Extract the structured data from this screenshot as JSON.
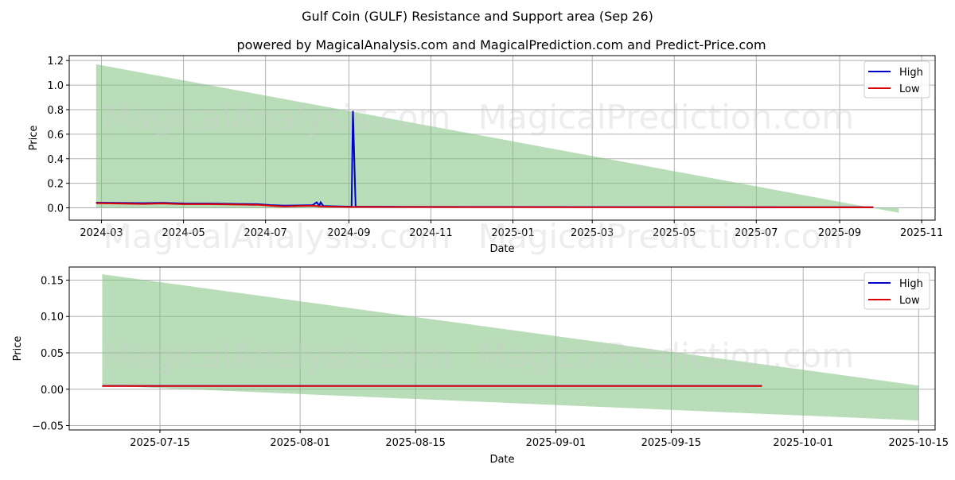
{
  "header": {
    "title": "Gulf Coin (GULF) Resistance and Support area (Sep 26)",
    "subtitle": "powered by MagicalAnalysis.com and MagicalPrediction.com and Predict-Price.com"
  },
  "watermarks": [
    "MagicalAnalysis.com",
    "MagicalPrediction.com"
  ],
  "colors": {
    "high": "#0000cc",
    "low": "#dd0000",
    "band": "#7fbf7f",
    "grid": "#b0b0b0"
  },
  "chart_data": [
    {
      "type": "line",
      "title": "",
      "xlabel": "Date",
      "ylabel": "Price",
      "grid": true,
      "legend_position": "top-right",
      "xlim": [
        "2024-02-06",
        "2025-11-11"
      ],
      "ylim": [
        -0.1,
        1.24
      ],
      "x_ticks": [
        "2024-03-01",
        "2024-05-01",
        "2024-07-01",
        "2024-09-01",
        "2024-11-01",
        "2025-01-01",
        "2025-03-01",
        "2025-05-01",
        "2025-07-01",
        "2025-09-01",
        "2025-11-01"
      ],
      "x_tick_labels": [
        "2024-03",
        "2024-05",
        "2024-07",
        "2024-09",
        "2024-11",
        "2025-01",
        "2025-03",
        "2025-05",
        "2025-07",
        "2025-09",
        "2025-11"
      ],
      "y_ticks": [
        0.0,
        0.2,
        0.4,
        0.6,
        0.8,
        1.0,
        1.2
      ],
      "y_tick_labels": [
        "0.0",
        "0.2",
        "0.4",
        "0.6",
        "0.8",
        "1.0",
        "1.2"
      ],
      "band": {
        "name": "Resistance and Support area",
        "upper": [
          {
            "x": "2024-02-26",
            "y": 1.17
          },
          {
            "x": "2025-10-15",
            "y": -0.04
          }
        ],
        "lower": [
          {
            "x": "2024-02-26",
            "y": 0.0
          },
          {
            "x": "2025-10-15",
            "y": 0.0
          }
        ]
      },
      "series": [
        {
          "name": "High",
          "points": [
            {
              "x": "2024-02-26",
              "y": 0.042
            },
            {
              "x": "2024-03-15",
              "y": 0.04
            },
            {
              "x": "2024-04-01",
              "y": 0.038
            },
            {
              "x": "2024-04-15",
              "y": 0.041
            },
            {
              "x": "2024-05-01",
              "y": 0.036
            },
            {
              "x": "2024-05-20",
              "y": 0.035
            },
            {
              "x": "2024-06-10",
              "y": 0.032
            },
            {
              "x": "2024-06-25",
              "y": 0.03
            },
            {
              "x": "2024-07-05",
              "y": 0.022
            },
            {
              "x": "2024-07-15",
              "y": 0.018
            },
            {
              "x": "2024-07-25",
              "y": 0.02
            },
            {
              "x": "2024-08-05",
              "y": 0.022
            },
            {
              "x": "2024-08-08",
              "y": 0.045
            },
            {
              "x": "2024-08-10",
              "y": 0.018
            },
            {
              "x": "2024-08-11",
              "y": 0.045
            },
            {
              "x": "2024-08-13",
              "y": 0.015
            },
            {
              "x": "2024-08-25",
              "y": 0.012
            },
            {
              "x": "2024-09-01",
              "y": 0.01
            },
            {
              "x": "2024-09-03",
              "y": 0.01
            },
            {
              "x": "2024-09-04",
              "y": 0.79
            },
            {
              "x": "2024-09-06",
              "y": 0.01
            },
            {
              "x": "2024-10-01",
              "y": 0.009
            },
            {
              "x": "2024-12-01",
              "y": 0.008
            },
            {
              "x": "2025-03-01",
              "y": 0.007
            },
            {
              "x": "2025-06-01",
              "y": 0.006
            },
            {
              "x": "2025-09-26",
              "y": 0.005
            }
          ]
        },
        {
          "name": "Low",
          "points": [
            {
              "x": "2024-02-26",
              "y": 0.038
            },
            {
              "x": "2024-03-15",
              "y": 0.035
            },
            {
              "x": "2024-04-01",
              "y": 0.032
            },
            {
              "x": "2024-04-15",
              "y": 0.036
            },
            {
              "x": "2024-05-01",
              "y": 0.03
            },
            {
              "x": "2024-05-20",
              "y": 0.03
            },
            {
              "x": "2024-06-10",
              "y": 0.027
            },
            {
              "x": "2024-06-25",
              "y": 0.025
            },
            {
              "x": "2024-07-05",
              "y": 0.017
            },
            {
              "x": "2024-07-15",
              "y": 0.012
            },
            {
              "x": "2024-07-25",
              "y": 0.015
            },
            {
              "x": "2024-08-05",
              "y": 0.017
            },
            {
              "x": "2024-08-13",
              "y": 0.011
            },
            {
              "x": "2024-09-01",
              "y": 0.008
            },
            {
              "x": "2024-10-01",
              "y": 0.007
            },
            {
              "x": "2024-12-01",
              "y": 0.006
            },
            {
              "x": "2025-03-01",
              "y": 0.005
            },
            {
              "x": "2025-06-01",
              "y": 0.005
            },
            {
              "x": "2025-09-26",
              "y": 0.004
            }
          ]
        }
      ]
    },
    {
      "type": "line",
      "title": "",
      "xlabel": "Date",
      "ylabel": "Price",
      "grid": true,
      "legend_position": "top-right",
      "xlim": [
        "2025-07-04",
        "2025-10-17"
      ],
      "ylim": [
        -0.056,
        0.168
      ],
      "x_ticks": [
        "2025-07-15",
        "2025-08-01",
        "2025-08-15",
        "2025-09-01",
        "2025-09-15",
        "2025-10-01",
        "2025-10-15"
      ],
      "x_tick_labels": [
        "2025-07-15",
        "2025-08-01",
        "2025-08-15",
        "2025-09-01",
        "2025-09-15",
        "2025-10-01",
        "2025-10-15"
      ],
      "y_ticks": [
        -0.05,
        0.0,
        0.05,
        0.1,
        0.15
      ],
      "y_tick_labels": [
        "−0.05",
        "0.00",
        "0.05",
        "0.10",
        "0.15"
      ],
      "band": {
        "name": "Resistance and Support area",
        "upper": [
          {
            "x": "2025-07-08",
            "y": 0.158
          },
          {
            "x": "2025-10-15",
            "y": 0.005
          }
        ],
        "lower": [
          {
            "x": "2025-07-08",
            "y": 0.005
          },
          {
            "x": "2025-10-15",
            "y": -0.043
          }
        ]
      },
      "series": [
        {
          "name": "High",
          "points": [
            {
              "x": "2025-07-08",
              "y": 0.0045
            },
            {
              "x": "2025-08-01",
              "y": 0.0045
            },
            {
              "x": "2025-09-01",
              "y": 0.0045
            },
            {
              "x": "2025-09-26",
              "y": 0.0045
            }
          ]
        },
        {
          "name": "Low",
          "points": [
            {
              "x": "2025-07-08",
              "y": 0.0043
            },
            {
              "x": "2025-08-01",
              "y": 0.0043
            },
            {
              "x": "2025-09-01",
              "y": 0.0043
            },
            {
              "x": "2025-09-26",
              "y": 0.0043
            }
          ]
        }
      ]
    }
  ]
}
